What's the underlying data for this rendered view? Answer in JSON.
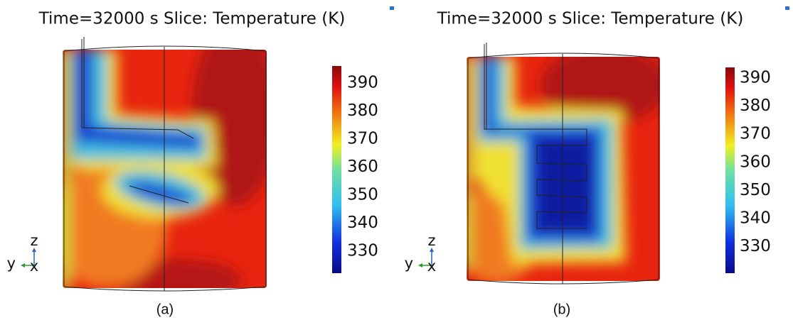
{
  "panels": [
    {
      "title": "Time=32000 s  Slice: Temperature (K)",
      "colorbar_ticks": [
        "390",
        "380",
        "370",
        "360",
        "350",
        "340",
        "330"
      ],
      "axes": {
        "z": "z",
        "y": "y",
        "x": "x"
      },
      "caption": "(a)"
    },
    {
      "title": "Time=32000 s  Slice: Temperature (K)",
      "colorbar_ticks": [
        "390",
        "380",
        "370",
        "360",
        "350",
        "340",
        "330"
      ],
      "axes": {
        "z": "z",
        "y": "y",
        "x": "x"
      },
      "caption": "(b)"
    }
  ]
}
